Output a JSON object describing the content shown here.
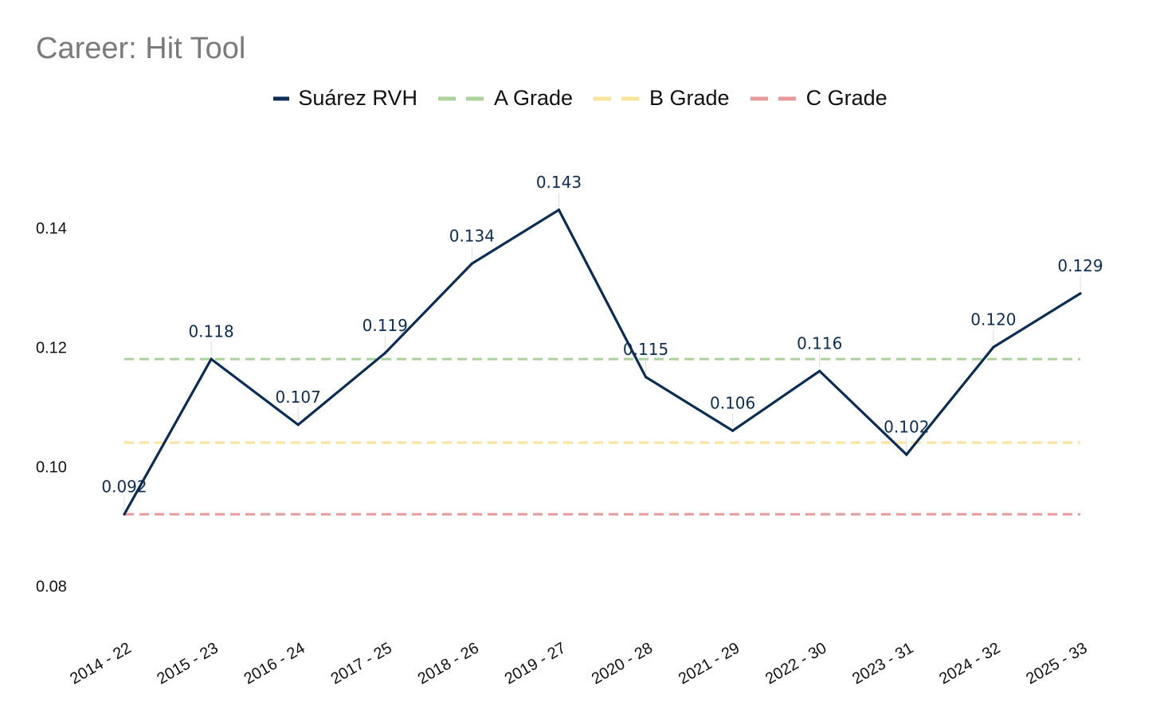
{
  "chart_data": {
    "type": "line",
    "title": "Career: Hit Tool",
    "xlabel": "",
    "ylabel": "",
    "categories": [
      "2014 - 22",
      "2015 - 23",
      "2016 - 24",
      "2017 - 25",
      "2018 - 26",
      "2019 - 27",
      "2020 - 28",
      "2021 - 29",
      "2022 - 30",
      "2023 - 31",
      "2024 - 32",
      "2025 - 33"
    ],
    "series": [
      {
        "name": "Suárez RVH",
        "color": "#0b2d55",
        "values": [
          0.092,
          0.118,
          0.107,
          0.119,
          0.134,
          0.143,
          0.115,
          0.106,
          0.116,
          0.102,
          0.12,
          0.129
        ],
        "labels": [
          "0.092",
          "0.118",
          "0.107",
          "0.119",
          "0.134",
          "0.143",
          "0.115",
          "0.106",
          "0.116",
          "0.102",
          "0.120",
          "0.129"
        ]
      }
    ],
    "reference_lines": [
      {
        "name": "A Grade",
        "value": 0.118,
        "color": "#acd39e"
      },
      {
        "name": "B Grade",
        "value": 0.104,
        "color": "#fbe39c"
      },
      {
        "name": "C Grade",
        "value": 0.092,
        "color": "#e89a9a"
      }
    ],
    "yticks": [
      "0.08",
      "0.10",
      "0.12",
      "0.14"
    ],
    "ylim": [
      0.0715,
      0.1535
    ],
    "grid": false,
    "legend_position": "top-center"
  }
}
